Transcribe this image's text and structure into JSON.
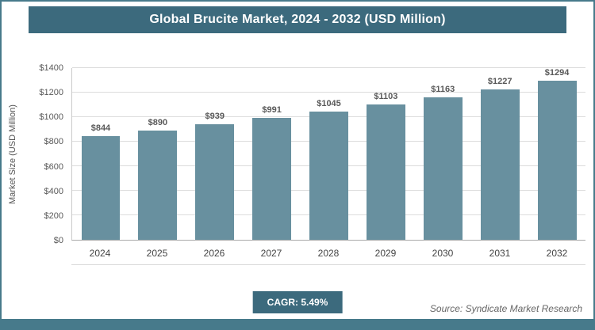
{
  "header": {
    "title": "Global Brucite Market, 2024 - 2032 (USD Million)"
  },
  "chart_data": {
    "type": "bar",
    "title": "Global Brucite Market, 2024 - 2032 (USD Million)",
    "categories": [
      "2024",
      "2025",
      "2026",
      "2027",
      "2028",
      "2029",
      "2030",
      "2031",
      "2032"
    ],
    "values": [
      844,
      890,
      939,
      991,
      1045,
      1103,
      1163,
      1227,
      1294
    ],
    "xlabel": "",
    "ylabel": "Market Size (USD Million)",
    "ylim": [
      0,
      1400
    ],
    "ytick_step": 200,
    "ytick_prefix": "$",
    "value_label_prefix": "$",
    "grid": true,
    "legend": "none",
    "bar_color": "#68909f"
  },
  "footer": {
    "cagr_label": "CAGR: 5.49%",
    "source": "Source: Syndicate Market Research"
  },
  "colors": {
    "accent": "#3c6a7d",
    "border": "#477a8b",
    "bar": "#68909f",
    "gridline": "#dcdcdc",
    "tick_text": "#595959"
  }
}
